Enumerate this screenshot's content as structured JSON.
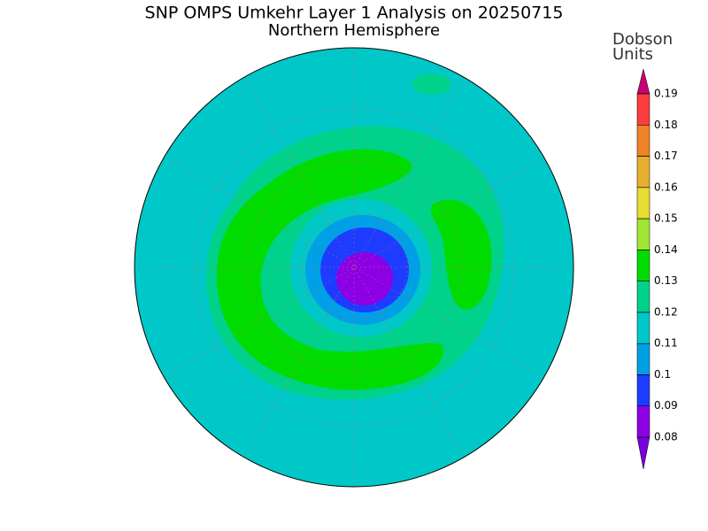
{
  "title": "SNP OMPS Umkehr Layer 1 Analysis on 20250715",
  "subtitle": "Northern Hemisphere",
  "colorbar": {
    "label_lines": [
      "Dobson",
      "Units"
    ],
    "ticks": [
      0.08,
      0.09,
      0.1,
      0.11,
      0.12,
      0.13,
      0.14,
      0.15,
      0.16,
      0.17,
      0.18,
      0.19
    ],
    "colors": [
      "#7800dc",
      "#8c00e6",
      "#1e3cff",
      "#00a0e6",
      "#00c8c8",
      "#00d28c",
      "#00dc00",
      "#a0e632",
      "#e6dc32",
      "#e6af2d",
      "#f08228",
      "#fa3c3c",
      "#c80078"
    ]
  }
}
